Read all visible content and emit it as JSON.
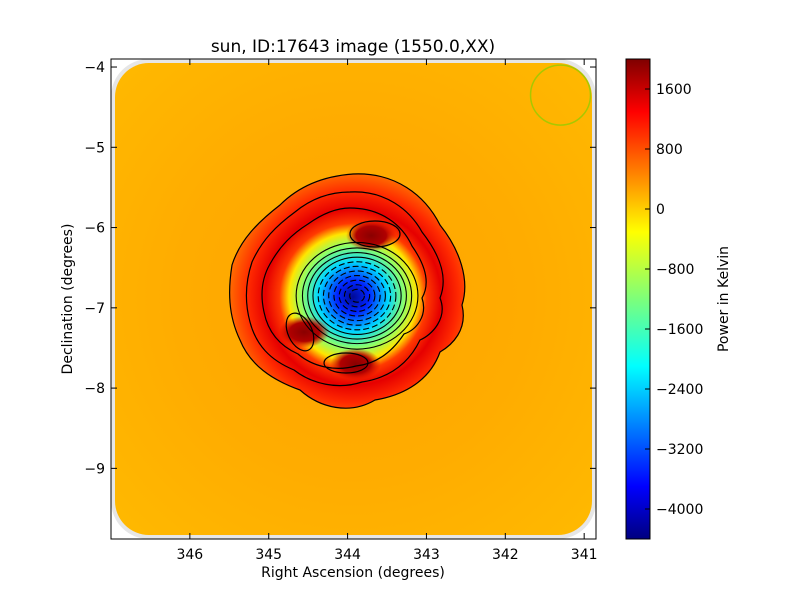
{
  "chart_data": {
    "type": "heatmap",
    "title": "sun, ID:17643 image (1550.0,XX)",
    "xlabel": "Right Ascension (degrees)",
    "ylabel": "Declination (degrees)",
    "xlim": [
      347.0,
      340.85
    ],
    "ylim": [
      -9.88,
      -3.9
    ],
    "x_ticks": [
      346,
      345,
      344,
      343,
      342,
      341
    ],
    "y_ticks": [
      -4,
      -5,
      -6,
      -7,
      -8,
      -9
    ],
    "x_tick_labels": [
      "346",
      "345",
      "344",
      "343",
      "342",
      "341"
    ],
    "y_tick_labels": [
      "−4",
      "−5",
      "−6",
      "−7",
      "−8",
      "−9"
    ],
    "colorbar": {
      "label": "Power in Kelvin",
      "range": [
        -4400,
        2000
      ],
      "ticks": [
        1600,
        800,
        0,
        -800,
        -1600,
        -2400,
        -3200,
        -4000
      ],
      "tick_labels": [
        "1600",
        "800",
        "0",
        "−800",
        "−1600",
        "−2400",
        "−3200",
        "−4000"
      ],
      "colormap": "jet"
    },
    "background_level": 300,
    "features": {
      "center_ra": 343.88,
      "center_dec": -6.85,
      "central_minimum": -4300,
      "ring_radius_deg": 0.9,
      "ring_peak": 1700,
      "hot_spots": [
        {
          "ra": 343.7,
          "dec": -6.1,
          "value": 1950
        },
        {
          "ra": 344.55,
          "dec": -7.3,
          "value": 1850
        },
        {
          "ra": 343.9,
          "dec": -7.7,
          "value": 1850
        }
      ],
      "beam_circle": {
        "ra": 341.3,
        "dec": -4.35,
        "radius_deg": 0.38
      }
    },
    "grid": false,
    "legend": "none"
  }
}
